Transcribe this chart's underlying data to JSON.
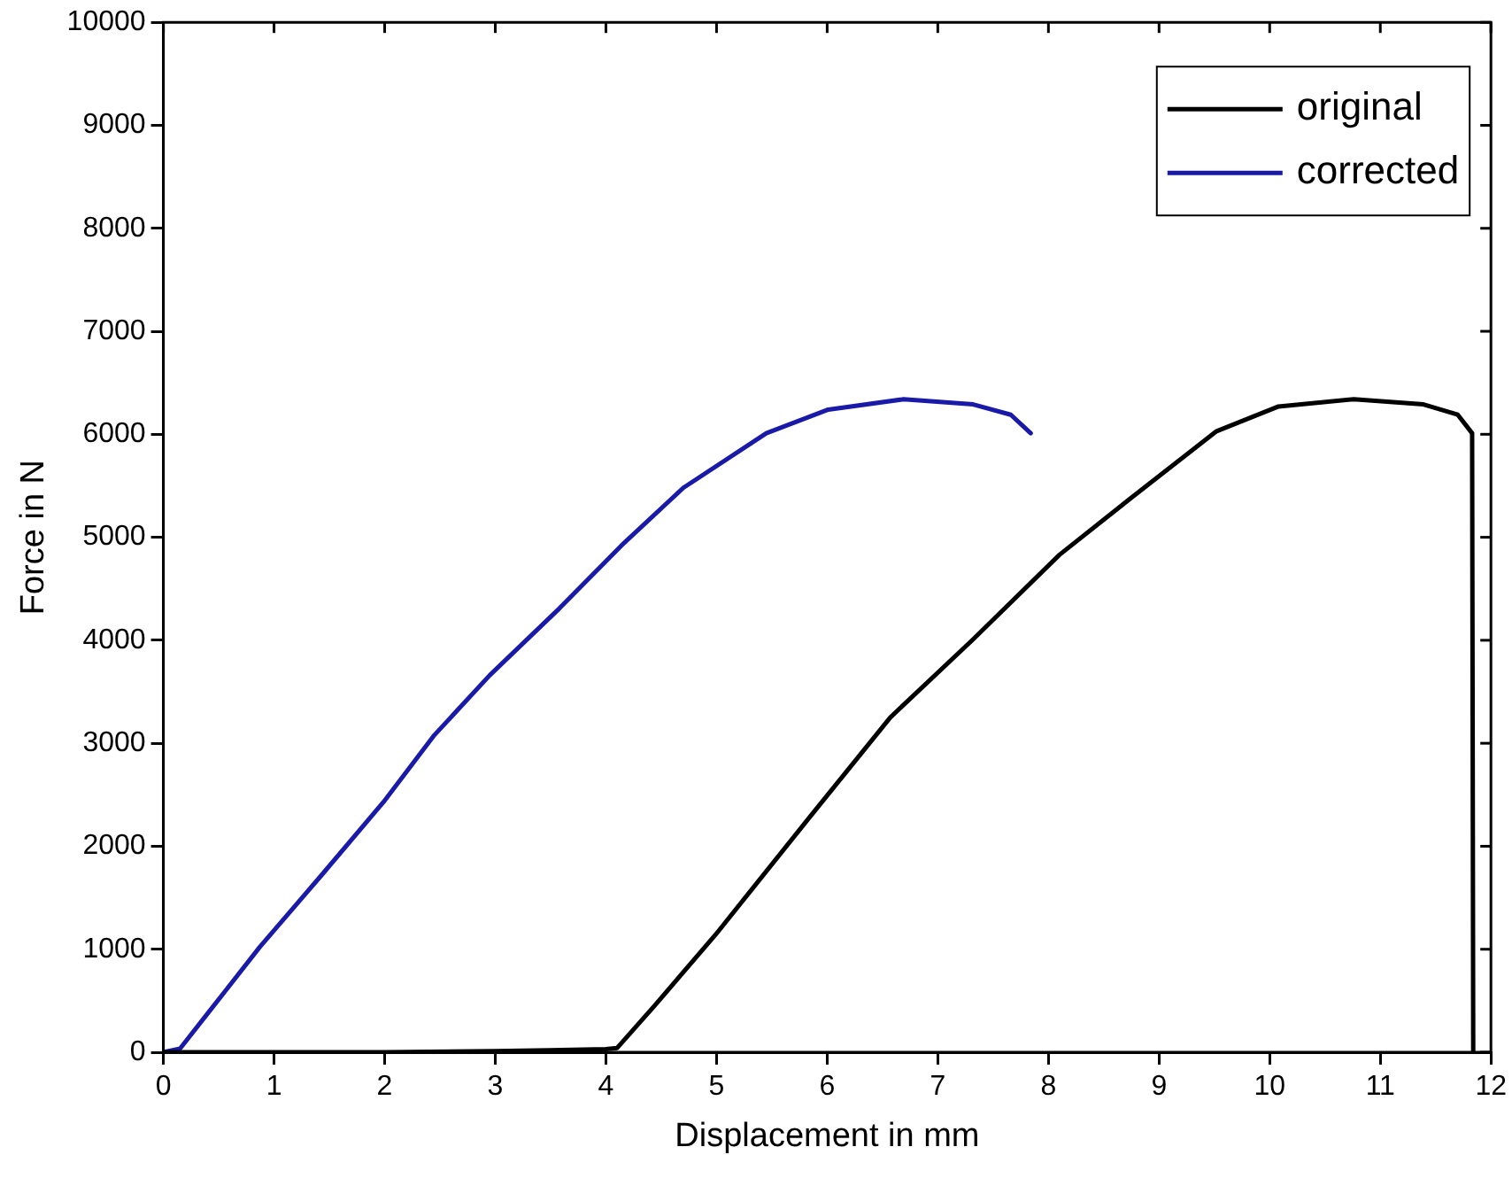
{
  "chart_data": {
    "type": "line",
    "xlabel": "Displacement in mm",
    "ylabel": "Force in N",
    "xlim": [
      0,
      12
    ],
    "xticks": [
      0,
      1,
      2,
      3,
      4,
      5,
      6,
      7,
      8,
      9,
      10,
      11,
      12
    ],
    "ylim": [
      0,
      10000
    ],
    "yticks": [
      0,
      1000,
      2000,
      3000,
      4000,
      5000,
      6000,
      7000,
      8000,
      9000,
      10000
    ],
    "grid": false,
    "legend": "top right",
    "marker": "none",
    "line_style": "solid",
    "series": [
      {
        "name": "original",
        "color": "#000000",
        "x": [
          0,
          1,
          2,
          3,
          3.5,
          4,
          4.1,
          4.43,
          4.99,
          5.84,
          6.57,
          7.32,
          8.1,
          8.78,
          9.52,
          10.08,
          10.76,
          11.39,
          11.7,
          11.83,
          11.84
        ],
        "values": [
          0,
          0,
          0,
          10,
          20,
          30,
          40,
          440,
          1140,
          2280,
          3250,
          4010,
          4830,
          5410,
          6030,
          6270,
          6340,
          6290,
          6190,
          6010,
          0
        ]
      },
      {
        "name": "corrected",
        "color": "#1a1aa8",
        "x": [
          0,
          0.15,
          0.41,
          0.87,
          1.43,
          1.99,
          2.45,
          2.95,
          3.58,
          4.14,
          4.7,
          5.45,
          6.01,
          6.69,
          7.32,
          7.66,
          7.84
        ],
        "values": [
          0,
          35,
          390,
          1020,
          1720,
          2430,
          3080,
          3660,
          4310,
          4920,
          5480,
          6010,
          6240,
          6340,
          6290,
          6190,
          6010
        ]
      }
    ]
  }
}
